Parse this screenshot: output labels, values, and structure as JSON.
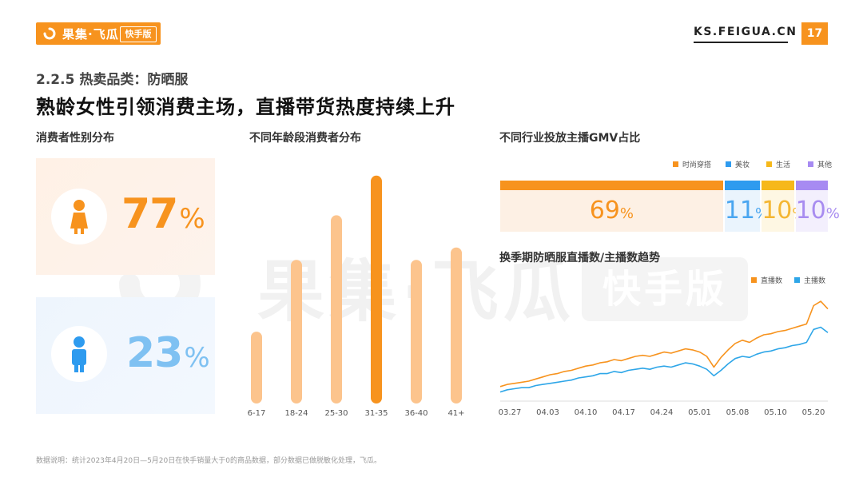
{
  "header": {
    "logo_text": "果集·飞瓜",
    "logo_badge": "快手版",
    "site": "KS.FEIGUA.CN",
    "page_number": "17"
  },
  "section_label": "2.2.5 热卖品类：防晒服",
  "headline": "熟龄女性引领消费主场，直播带货热度持续上升",
  "watermark": {
    "main": "果集·飞瓜",
    "badge": "快手版"
  },
  "gender": {
    "title": "消费者性别分布",
    "female": {
      "value": "77",
      "unit": "%",
      "color": "#f7931e"
    },
    "male": {
      "value": "23",
      "unit": "%",
      "color": "#7fc1f2"
    }
  },
  "chart_data": [
    {
      "type": "bar",
      "title": "不同年龄段消费者分布",
      "categories": [
        "6-17",
        "18-24",
        "25-30",
        "31-35",
        "36-40",
        "41+"
      ],
      "values": [
        29,
        58,
        76,
        92,
        58,
        63
      ],
      "highlight_index": 3,
      "colors": {
        "bar": "#fcc48d",
        "highlight": "#f7931e"
      },
      "ylim": [
        0,
        100
      ]
    },
    {
      "type": "bar",
      "title": "不同行业投放主播GMV占比",
      "stacked": true,
      "series": [
        {
          "name": "时尚穿搭",
          "value": 69,
          "label": "69",
          "color": "#f7931e",
          "bg": "#fdf0e4",
          "text_color": "#f7931e"
        },
        {
          "name": "美妆",
          "value": 11,
          "label": "11",
          "color": "#2e9bef",
          "bg": "#eaf4fd",
          "text_color": "#4aa6f0"
        },
        {
          "name": "生活",
          "value": 10,
          "label": "10",
          "color": "#f6b81a",
          "bg": "#fef7e3",
          "text_color": "#f4b632"
        },
        {
          "name": "其他",
          "value": 10,
          "label": "10",
          "color": "#a78bf2",
          "bg": "#f3effd",
          "text_color": "#a88cf0"
        }
      ],
      "unit": "%"
    },
    {
      "type": "line",
      "title": "换季期防晒服直播数/主播数趋势",
      "x_ticks": [
        "03.27",
        "04.03",
        "04.10",
        "04.17",
        "04.24",
        "05.01",
        "05.08",
        "05.10",
        "05.20"
      ],
      "series": [
        {
          "name": "直播数",
          "color": "#f7931e",
          "values": [
            12,
            14,
            15,
            16,
            17,
            19,
            21,
            23,
            24,
            26,
            27,
            29,
            31,
            32,
            34,
            35,
            37,
            36,
            38,
            40,
            41,
            40,
            42,
            44,
            43,
            45,
            47,
            46,
            44,
            40,
            30,
            39,
            46,
            52,
            55,
            53,
            57,
            60,
            61,
            63,
            64,
            66,
            68,
            70,
            87,
            91,
            84
          ]
        },
        {
          "name": "主播数",
          "color": "#2ea6e8",
          "values": [
            7,
            9,
            10,
            11,
            11,
            13,
            14,
            15,
            16,
            17,
            18,
            20,
            21,
            22,
            24,
            24,
            26,
            25,
            27,
            28,
            29,
            28,
            30,
            31,
            30,
            32,
            34,
            33,
            31,
            28,
            22,
            27,
            33,
            38,
            40,
            39,
            42,
            44,
            45,
            47,
            48,
            50,
            51,
            53,
            65,
            67,
            62
          ]
        }
      ],
      "ylim": [
        0,
        100
      ],
      "grid": false,
      "legend": "top-right"
    }
  ],
  "footnote": "数据说明：统计2023年4月20日—5月20日在快手销量大于0的商品数据，部分数据已做脱敏化处理，飞瓜。"
}
